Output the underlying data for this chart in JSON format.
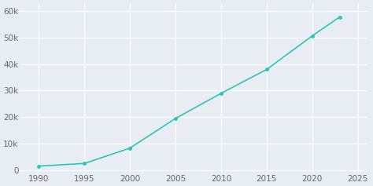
{
  "years": [
    1990,
    1995,
    2000,
    2005,
    2010,
    2015,
    2020,
    2023
  ],
  "population": [
    1500,
    2500,
    8300,
    19500,
    29000,
    38000,
    50700,
    57800
  ],
  "line_color": "#2ec4b6",
  "bg_color": "#e8edf4",
  "marker": "o",
  "marker_size": 2.5,
  "linewidth": 1.2,
  "xlim": [
    1988,
    2026
  ],
  "ylim": [
    -1000,
    63000
  ],
  "ytick_values": [
    0,
    10000,
    20000,
    30000,
    40000,
    50000,
    60000
  ],
  "xtick_values": [
    1990,
    1995,
    2000,
    2005,
    2010,
    2015,
    2020,
    2025
  ],
  "tick_label_size": 7.5,
  "tick_color": "#666677"
}
